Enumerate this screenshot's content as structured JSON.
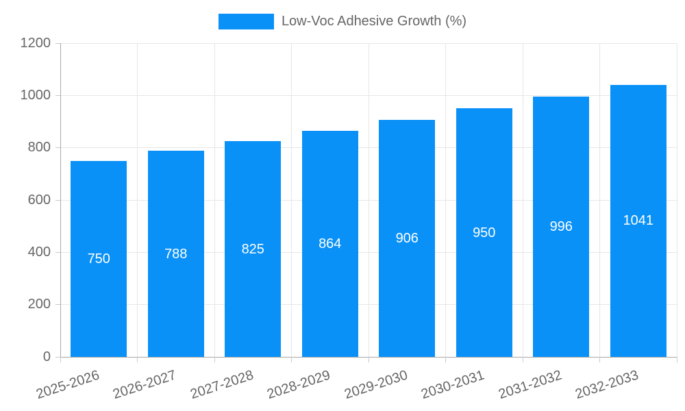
{
  "chart_data": {
    "type": "bar",
    "title": "",
    "legend": "Low-Voc Adhesive Growth (%)",
    "legend_position": "top",
    "categories": [
      "2025-2026",
      "2026-2027",
      "2027-2028",
      "2028-2029",
      "2029-2030",
      "2030-2031",
      "2031-2032",
      "2032-2033"
    ],
    "values": [
      750,
      788,
      825,
      864,
      906,
      950,
      996,
      1041
    ],
    "value_labels": [
      "750",
      "788",
      "825",
      "864",
      "906",
      "950",
      "996",
      "1041"
    ],
    "xlabel": "",
    "ylabel": "",
    "ylim": [
      0,
      1200
    ],
    "yticks": [
      0,
      200,
      400,
      600,
      800,
      1000,
      1200
    ],
    "grid": true,
    "bar_color": "#0a91f7",
    "value_label_color": "#ffffff",
    "tick_label_color": "#666666"
  }
}
